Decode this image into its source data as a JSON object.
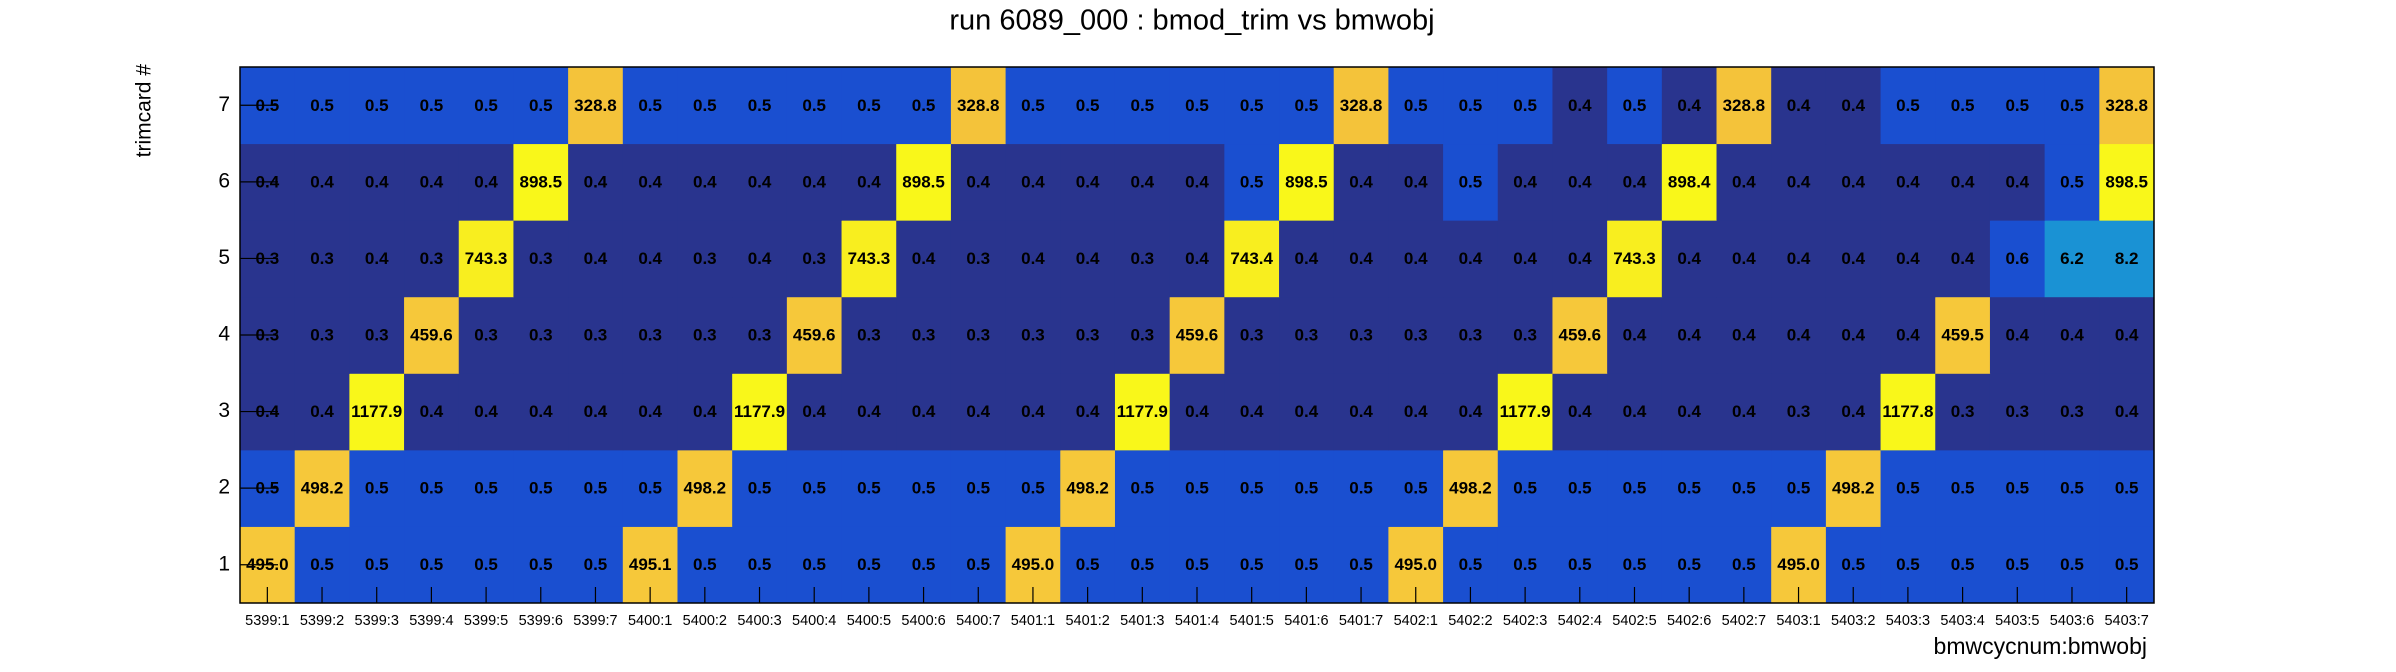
{
  "chart_data": {
    "type": "heatmap",
    "title": "run 6089_000 : bmod_trim vs bmwobj",
    "x_label": "bmwcycnum:bmwobj",
    "y_label": "trimcard #",
    "categories": [
      "5399:1",
      "5399:2",
      "5399:3",
      "5399:4",
      "5399:5",
      "5399:6",
      "5399:7",
      "5400:1",
      "5400:2",
      "5400:3",
      "5400:4",
      "5400:5",
      "5400:6",
      "5400:7",
      "5401:1",
      "5401:2",
      "5401:3",
      "5401:4",
      "5401:5",
      "5401:6",
      "5401:7",
      "5402:1",
      "5402:2",
      "5402:3",
      "5402:4",
      "5402:5",
      "5402:6",
      "5402:7",
      "5403:1",
      "5403:2",
      "5403:3",
      "5403:4",
      "5403:5",
      "5403:6",
      "5403:7"
    ],
    "y_categories": [
      "1",
      "2",
      "3",
      "4",
      "5",
      "6",
      "7"
    ],
    "z": [
      [
        495.0,
        0.5,
        0.5,
        0.5,
        0.5,
        0.5,
        0.5,
        495.1,
        0.5,
        0.5,
        0.5,
        0.5,
        0.5,
        0.5,
        495.0,
        0.5,
        0.5,
        0.5,
        0.5,
        0.5,
        0.5,
        495.0,
        0.5,
        0.5,
        0.5,
        0.5,
        0.5,
        0.5,
        495.0,
        0.5,
        0.5,
        0.5,
        0.5,
        0.5,
        0.5
      ],
      [
        0.5,
        498.2,
        0.5,
        0.5,
        0.5,
        0.5,
        0.5,
        0.5,
        498.2,
        0.5,
        0.5,
        0.5,
        0.5,
        0.5,
        0.5,
        498.2,
        0.5,
        0.5,
        0.5,
        0.5,
        0.5,
        0.5,
        498.2,
        0.5,
        0.5,
        0.5,
        0.5,
        0.5,
        0.5,
        498.2,
        0.5,
        0.5,
        0.5,
        0.5,
        0.5
      ],
      [
        0.4,
        0.4,
        1177.9,
        0.4,
        0.4,
        0.4,
        0.4,
        0.4,
        0.4,
        1177.9,
        0.4,
        0.4,
        0.4,
        0.4,
        0.4,
        0.4,
        1177.9,
        0.4,
        0.4,
        0.4,
        0.4,
        0.4,
        0.4,
        1177.9,
        0.4,
        0.4,
        0.4,
        0.4,
        0.3,
        0.4,
        1177.8,
        0.3,
        0.3,
        0.3,
        0.4
      ],
      [
        0.3,
        0.3,
        0.3,
        459.6,
        0.3,
        0.3,
        0.3,
        0.3,
        0.3,
        0.3,
        459.6,
        0.3,
        0.3,
        0.3,
        0.3,
        0.3,
        0.3,
        459.6,
        0.3,
        0.3,
        0.3,
        0.3,
        0.3,
        0.3,
        459.6,
        0.4,
        0.4,
        0.4,
        0.4,
        0.4,
        0.4,
        459.5,
        0.4,
        0.4,
        0.4
      ],
      [
        0.3,
        0.3,
        0.4,
        0.3,
        743.3,
        0.3,
        0.4,
        0.4,
        0.3,
        0.4,
        0.3,
        743.3,
        0.4,
        0.3,
        0.4,
        0.4,
        0.3,
        0.4,
        743.4,
        0.4,
        0.4,
        0.4,
        0.4,
        0.4,
        0.4,
        743.3,
        0.4,
        0.4,
        0.4,
        0.4,
        0.4,
        0.4,
        0.6,
        6.2,
        8.2
      ],
      [
        0.4,
        0.4,
        0.4,
        0.4,
        0.4,
        898.5,
        0.4,
        0.4,
        0.4,
        0.4,
        0.4,
        0.4,
        898.5,
        0.4,
        0.4,
        0.4,
        0.4,
        0.4,
        0.5,
        898.5,
        0.4,
        0.4,
        0.5,
        0.4,
        0.4,
        0.4,
        898.4,
        0.4,
        0.4,
        0.4,
        0.4,
        0.4,
        0.4,
        0.5,
        898.5
      ],
      [
        0.5,
        0.5,
        0.5,
        0.5,
        0.5,
        0.5,
        328.8,
        0.5,
        0.5,
        0.5,
        0.5,
        0.5,
        0.5,
        328.8,
        0.5,
        0.5,
        0.5,
        0.5,
        0.5,
        0.5,
        328.8,
        0.5,
        0.5,
        0.5,
        0.4,
        0.5,
        0.4,
        328.8,
        0.4,
        0.4,
        0.5,
        0.5,
        0.5,
        0.5,
        328.8
      ]
    ],
    "value_labels": [
      [
        "495.0",
        "0.5",
        "0.5",
        "0.5",
        "0.5",
        "0.5",
        "0.5",
        "495.1",
        "0.5",
        "0.5",
        "0.5",
        "0.5",
        "0.5",
        "0.5",
        "495.0",
        "0.5",
        "0.5",
        "0.5",
        "0.5",
        "0.5",
        "0.5",
        "495.0",
        "0.5",
        "0.5",
        "0.5",
        "0.5",
        "0.5",
        "0.5",
        "495.0",
        "0.5",
        "0.5",
        "0.5",
        "0.5",
        "0.5",
        "0.5"
      ],
      [
        "0.5",
        "498.2",
        "0.5",
        "0.5",
        "0.5",
        "0.5",
        "0.5",
        "0.5",
        "498.2",
        "0.5",
        "0.5",
        "0.5",
        "0.5",
        "0.5",
        "0.5",
        "498.2",
        "0.5",
        "0.5",
        "0.5",
        "0.5",
        "0.5",
        "0.5",
        "498.2",
        "0.5",
        "0.5",
        "0.5",
        "0.5",
        "0.5",
        "0.5",
        "498.2",
        "0.5",
        "0.5",
        "0.5",
        "0.5",
        "0.5"
      ],
      [
        "0.4",
        "0.4",
        "1177.9",
        "0.4",
        "0.4",
        "0.4",
        "0.4",
        "0.4",
        "0.4",
        "1177.9",
        "0.4",
        "0.4",
        "0.4",
        "0.4",
        "0.4",
        "0.4",
        "1177.9",
        "0.4",
        "0.4",
        "0.4",
        "0.4",
        "0.4",
        "0.4",
        "1177.9",
        "0.4",
        "0.4",
        "0.4",
        "0.4",
        "0.3",
        "0.4",
        "1177.8",
        "0.3",
        "0.3",
        "0.3",
        "0.4"
      ],
      [
        "0.3",
        "0.3",
        "0.3",
        "459.6",
        "0.3",
        "0.3",
        "0.3",
        "0.3",
        "0.3",
        "0.3",
        "459.6",
        "0.3",
        "0.3",
        "0.3",
        "0.3",
        "0.3",
        "0.3",
        "459.6",
        "0.3",
        "0.3",
        "0.3",
        "0.3",
        "0.3",
        "0.3",
        "459.6",
        "0.4",
        "0.4",
        "0.4",
        "0.4",
        "0.4",
        "0.4",
        "459.5",
        "0.4",
        "0.4",
        "0.4"
      ],
      [
        "0.3",
        "0.3",
        "0.4",
        "0.3",
        "743.3",
        "0.3",
        "0.4",
        "0.4",
        "0.3",
        "0.4",
        "0.3",
        "743.3",
        "0.4",
        "0.3",
        "0.4",
        "0.4",
        "0.3",
        "0.4",
        "743.4",
        "0.4",
        "0.4",
        "0.4",
        "0.4",
        "0.4",
        "0.4",
        "743.3",
        "0.4",
        "0.4",
        "0.4",
        "0.4",
        "0.4",
        "0.4",
        "0.6",
        "6.2",
        "8.2"
      ],
      [
        "0.4",
        "0.4",
        "0.4",
        "0.4",
        "0.4",
        "898.5",
        "0.4",
        "0.4",
        "0.4",
        "0.4",
        "0.4",
        "0.4",
        "898.5",
        "0.4",
        "0.4",
        "0.4",
        "0.4",
        "0.4",
        "0.5",
        "898.5",
        "0.4",
        "0.4",
        "0.5",
        "0.4",
        "0.4",
        "0.4",
        "898.4",
        "0.4",
        "0.4",
        "0.4",
        "0.4",
        "0.4",
        "0.4",
        "0.5",
        "898.5"
      ],
      [
        "0.5",
        "0.5",
        "0.5",
        "0.5",
        "0.5",
        "0.5",
        "328.8",
        "0.5",
        "0.5",
        "0.5",
        "0.5",
        "0.5",
        "0.5",
        "328.8",
        "0.5",
        "0.5",
        "0.5",
        "0.5",
        "0.5",
        "0.5",
        "328.8",
        "0.5",
        "0.5",
        "0.5",
        "0.4",
        "0.5",
        "0.4",
        "328.8",
        "0.4",
        "0.4",
        "0.5",
        "0.5",
        "0.5",
        "0.5",
        "328.8"
      ]
    ],
    "log_z": true,
    "palette": [
      "#29348e",
      "#1a4fd0",
      "#1657d6",
      "#1463da",
      "#1270dc",
      "#107ddb",
      "#0f8ad8",
      "#1a92d4",
      "#17a6b5",
      "#2cb3a0",
      "#55b98a",
      "#7dbd72",
      "#a2bd5e",
      "#c2ba4f",
      "#dcb745",
      "#efbc3c",
      "#f4c33a",
      "#f6c83a",
      "#f8ee1f",
      "#f9f71a"
    ]
  }
}
